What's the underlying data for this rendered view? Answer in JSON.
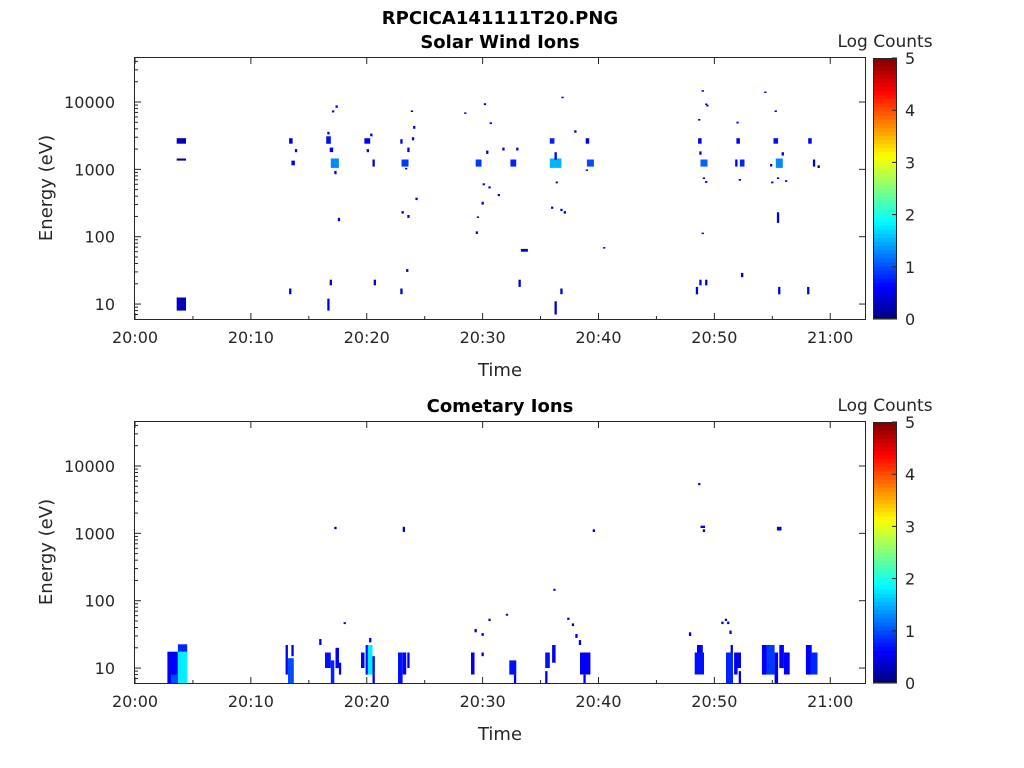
{
  "figure_title": "RPCICA141111T20.PNG",
  "chart_data": [
    {
      "type": "heatmap",
      "title": "Solar Wind Ions",
      "xlabel": "Time",
      "ylabel": "Energy (eV)",
      "x_ticks": [
        "20:00",
        "20:10",
        "20:20",
        "20:30",
        "20:40",
        "20:50",
        "21:00"
      ],
      "y_ticks": [
        "10",
        "100",
        "1000",
        "10000"
      ],
      "y_scale": "log",
      "ylim": [
        6,
        45000
      ],
      "xlim_minutes": [
        0,
        63
      ],
      "colorbar": {
        "label": "Log Counts",
        "ticks": [
          "0",
          "1",
          "2",
          "3",
          "4",
          "5"
        ],
        "range": [
          0,
          5
        ],
        "colormap": "jet"
      },
      "cells": [
        [
          3.6,
          4.4,
          2400,
          2900,
          0.3
        ],
        [
          3.6,
          4.4,
          1350,
          1450,
          0.2
        ],
        [
          3.6,
          4.4,
          8,
          12.5,
          0.3
        ],
        [
          13.3,
          13.6,
          2400,
          2900,
          0.5
        ],
        [
          13.5,
          13.8,
          1150,
          1350,
          0.6
        ],
        [
          13.8,
          14.0,
          1800,
          2000,
          0.4
        ],
        [
          13.3,
          13.5,
          14,
          17,
          0.4
        ],
        [
          16.5,
          16.9,
          2400,
          3100,
          0.7
        ],
        [
          16.6,
          16.8,
          3300,
          3600,
          0.5
        ],
        [
          16.8,
          17.1,
          1800,
          2100,
          0.6
        ],
        [
          16.9,
          17.6,
          1050,
          1450,
          1.3
        ],
        [
          17.2,
          17.4,
          850,
          950,
          0.5
        ],
        [
          17.3,
          17.5,
          8200,
          8900,
          0.4
        ],
        [
          17.0,
          17.2,
          7000,
          7500,
          0.4
        ],
        [
          17.5,
          17.7,
          170,
          190,
          0.4
        ],
        [
          16.6,
          16.8,
          8,
          12,
          0.4
        ],
        [
          16.8,
          17.0,
          19,
          23,
          0.4
        ],
        [
          19.8,
          20.3,
          2400,
          2900,
          0.6
        ],
        [
          20.0,
          20.2,
          1800,
          2000,
          0.4
        ],
        [
          20.3,
          20.5,
          3100,
          3400,
          0.4
        ],
        [
          20.5,
          20.7,
          1100,
          1400,
          0.4
        ],
        [
          20.6,
          20.8,
          19,
          23,
          0.4
        ],
        [
          22.9,
          23.1,
          2400,
          2800,
          0.5
        ],
        [
          23.0,
          23.6,
          1100,
          1400,
          0.9
        ],
        [
          23.3,
          23.5,
          1000,
          1050,
          0.5
        ],
        [
          23.5,
          23.7,
          1800,
          2100,
          0.4
        ],
        [
          23.9,
          24.1,
          2700,
          3000,
          0.4
        ],
        [
          23.8,
          24.0,
          7100,
          7500,
          0.4
        ],
        [
          24.0,
          24.2,
          4000,
          4400,
          0.4
        ],
        [
          23.0,
          23.2,
          220,
          240,
          0.4
        ],
        [
          23.5,
          23.7,
          190,
          210,
          0.4
        ],
        [
          24.2,
          24.4,
          350,
          380,
          0.4
        ],
        [
          23.4,
          23.6,
          30,
          33,
          0.4
        ],
        [
          22.9,
          23.1,
          14,
          17,
          0.4
        ],
        [
          28.4,
          28.6,
          6700,
          7000,
          0.4
        ],
        [
          29.4,
          29.9,
          1100,
          1400,
          0.9
        ],
        [
          29.5,
          29.7,
          190,
          200,
          0.4
        ],
        [
          29.4,
          29.6,
          110,
          120,
          0.4
        ],
        [
          29.9,
          30.1,
          300,
          330,
          0.4
        ],
        [
          30.0,
          30.2,
          580,
          620,
          0.4
        ],
        [
          30.3,
          30.5,
          1700,
          1900,
          0.4
        ],
        [
          30.5,
          30.7,
          520,
          560,
          0.4
        ],
        [
          30.1,
          30.3,
          9000,
          9600,
          0.4
        ],
        [
          30.6,
          30.8,
          4700,
          5000,
          0.4
        ],
        [
          31.3,
          31.5,
          400,
          430,
          0.4
        ],
        [
          31.7,
          31.9,
          1900,
          2100,
          0.4
        ],
        [
          32.4,
          32.9,
          1100,
          1400,
          0.8
        ],
        [
          32.9,
          33.1,
          1900,
          2100,
          0.4
        ],
        [
          33.3,
          33.9,
          60,
          66,
          0.4
        ],
        [
          33.1,
          33.3,
          18,
          23,
          0.4
        ],
        [
          35.8,
          36.2,
          2400,
          2900,
          0.8
        ],
        [
          35.8,
          36.8,
          1050,
          1450,
          1.5
        ],
        [
          36.2,
          36.4,
          1400,
          1800,
          0.6
        ],
        [
          35.9,
          36.1,
          260,
          280,
          0.4
        ],
        [
          36.3,
          36.5,
          620,
          660,
          0.4
        ],
        [
          36.7,
          36.9,
          240,
          260,
          0.4
        ],
        [
          37.0,
          37.2,
          220,
          240,
          0.4
        ],
        [
          36.8,
          37.0,
          11500,
          12000,
          0.4
        ],
        [
          37.9,
          38.1,
          3500,
          3800,
          0.4
        ],
        [
          36.2,
          36.4,
          7,
          11,
          0.4
        ],
        [
          36.7,
          36.9,
          14,
          17,
          0.4
        ],
        [
          38.9,
          39.2,
          2400,
          2900,
          0.6
        ],
        [
          39.0,
          39.6,
          1100,
          1400,
          1.0
        ],
        [
          38.9,
          39.1,
          950,
          1000,
          0.4
        ],
        [
          40.4,
          40.6,
          68,
          70,
          0.4
        ],
        [
          48.6,
          48.8,
          5300,
          5600,
          0.4
        ],
        [
          48.6,
          48.9,
          2400,
          2900,
          0.6
        ],
        [
          48.7,
          48.9,
          1650,
          1850,
          0.4
        ],
        [
          48.8,
          49.4,
          1100,
          1400,
          1.1
        ],
        [
          48.9,
          49.1,
          14200,
          15000,
          0.4
        ],
        [
          49.3,
          49.5,
          8600,
          9100,
          0.4
        ],
        [
          49.2,
          49.4,
          9100,
          9500,
          0.4
        ],
        [
          49.0,
          49.2,
          720,
          760,
          0.4
        ],
        [
          49.2,
          49.4,
          630,
          670,
          0.4
        ],
        [
          48.9,
          49.1,
          110,
          115,
          0.4
        ],
        [
          48.4,
          48.6,
          14,
          18,
          0.4
        ],
        [
          48.7,
          48.9,
          19,
          23,
          0.4
        ],
        [
          49.2,
          49.4,
          19,
          23,
          0.4
        ],
        [
          51.9,
          52.2,
          2400,
          2900,
          0.6
        ],
        [
          51.9,
          52.1,
          4800,
          5100,
          0.4
        ],
        [
          51.8,
          52.0,
          1100,
          1400,
          0.5
        ],
        [
          52.2,
          52.6,
          1100,
          1400,
          0.8
        ],
        [
          52.1,
          52.3,
          680,
          720,
          0.4
        ],
        [
          52.3,
          52.5,
          25,
          29,
          0.4
        ],
        [
          54.3,
          54.5,
          13600,
          14300,
          0.4
        ],
        [
          55.1,
          55.5,
          2400,
          2900,
          0.7
        ],
        [
          55.2,
          55.4,
          7100,
          7500,
          0.4
        ],
        [
          55.3,
          55.9,
          1050,
          1450,
          1.3
        ],
        [
          54.8,
          55.0,
          1100,
          1200,
          0.5
        ],
        [
          54.9,
          55.1,
          620,
          660,
          0.4
        ],
        [
          55.4,
          55.6,
          720,
          760,
          0.4
        ],
        [
          55.8,
          56.0,
          1600,
          1800,
          0.4
        ],
        [
          56.1,
          56.3,
          650,
          690,
          0.4
        ],
        [
          55.4,
          55.6,
          160,
          230,
          0.4
        ],
        [
          55.5,
          55.7,
          14,
          18,
          0.4
        ],
        [
          58.1,
          58.4,
          2400,
          2900,
          0.6
        ],
        [
          58.5,
          58.7,
          1100,
          1400,
          0.4
        ],
        [
          58.9,
          59.1,
          1050,
          1150,
          0.4
        ],
        [
          58.0,
          58.2,
          14,
          18,
          0.4
        ]
      ]
    },
    {
      "type": "heatmap",
      "title": "Cometary Ions",
      "xlabel": "Time",
      "ylabel": "Energy (eV)",
      "x_ticks": [
        "20:00",
        "20:10",
        "20:20",
        "20:30",
        "20:40",
        "20:50",
        "21:00"
      ],
      "y_ticks": [
        "10",
        "100",
        "1000",
        "10000"
      ],
      "y_scale": "log",
      "ylim": [
        6,
        45000
      ],
      "xlim_minutes": [
        0,
        63
      ],
      "colorbar": {
        "label": "Log Counts",
        "ticks": [
          "0",
          "1",
          "2",
          "3",
          "4",
          "5"
        ],
        "range": [
          0,
          5
        ],
        "colormap": "jet"
      },
      "cells": [
        [
          2.8,
          3.7,
          6,
          17.5,
          0.6
        ],
        [
          3.7,
          4.5,
          6,
          17.5,
          1.8
        ],
        [
          3.7,
          4.5,
          17.5,
          22.5,
          0.8
        ],
        [
          3.1,
          3.7,
          6,
          8,
          1.0
        ],
        [
          13.0,
          13.2,
          8,
          22,
          0.5
        ],
        [
          13.2,
          13.7,
          6,
          14,
          1.0
        ],
        [
          13.5,
          13.7,
          15,
          22,
          0.5
        ],
        [
          15.9,
          16.1,
          22,
          27,
          0.5
        ],
        [
          16.4,
          16.9,
          10,
          17,
          0.7
        ],
        [
          16.9,
          17.2,
          6,
          13,
          0.8
        ],
        [
          17.3,
          17.6,
          10,
          20,
          0.6
        ],
        [
          17.6,
          17.8,
          8,
          12,
          0.5
        ],
        [
          17.2,
          17.4,
          1150,
          1250,
          0.4
        ],
        [
          18.0,
          18.2,
          45,
          48,
          0.4
        ],
        [
          19.5,
          19.8,
          10,
          17,
          0.6
        ],
        [
          19.9,
          20.1,
          8,
          22,
          0.7
        ],
        [
          20.1,
          20.5,
          8,
          22,
          1.8
        ],
        [
          20.2,
          20.4,
          24,
          28,
          0.5
        ],
        [
          20.5,
          20.7,
          6,
          15,
          0.5
        ],
        [
          22.7,
          23.1,
          6,
          17,
          0.7
        ],
        [
          23.1,
          23.4,
          8,
          17,
          0.6
        ],
        [
          23.5,
          23.7,
          10,
          17,
          0.5
        ],
        [
          23.1,
          23.3,
          1050,
          1250,
          0.4
        ],
        [
          29.0,
          29.3,
          8,
          17,
          0.6
        ],
        [
          29.3,
          29.5,
          34,
          38,
          0.4
        ],
        [
          29.9,
          30.1,
          15,
          17,
          0.4
        ],
        [
          29.9,
          30.1,
          30,
          33,
          0.4
        ],
        [
          30.5,
          30.7,
          50,
          54,
          0.4
        ],
        [
          32.0,
          32.2,
          60,
          64,
          0.4
        ],
        [
          32.3,
          32.9,
          8,
          13,
          0.7
        ],
        [
          32.7,
          32.9,
          6,
          8,
          0.5
        ],
        [
          35.4,
          35.8,
          10,
          17,
          0.7
        ],
        [
          35.4,
          35.6,
          6,
          9,
          0.5
        ],
        [
          36.0,
          36.3,
          12,
          22,
          0.6
        ],
        [
          36.1,
          36.3,
          140,
          150,
          0.4
        ],
        [
          37.3,
          37.5,
          52,
          56,
          0.4
        ],
        [
          37.7,
          37.9,
          42,
          46,
          0.4
        ],
        [
          38.0,
          38.2,
          28,
          32,
          0.4
        ],
        [
          38.3,
          38.5,
          22,
          26,
          0.4
        ],
        [
          38.4,
          39.3,
          8,
          17,
          0.6
        ],
        [
          38.7,
          38.9,
          6,
          8,
          0.5
        ],
        [
          39.5,
          39.7,
          1050,
          1150,
          0.4
        ],
        [
          47.8,
          48.0,
          30,
          34,
          0.4
        ],
        [
          48.3,
          49.1,
          8,
          17,
          0.7
        ],
        [
          48.5,
          49.0,
          17,
          22,
          0.6
        ],
        [
          48.6,
          48.8,
          5200,
          5600,
          0.4
        ],
        [
          48.8,
          49.2,
          1200,
          1300,
          0.4
        ],
        [
          49.0,
          49.2,
          1050,
          1150,
          0.4
        ],
        [
          50.6,
          50.8,
          45,
          49,
          0.4
        ],
        [
          50.9,
          51.1,
          50,
          54,
          0.4
        ],
        [
          51.1,
          51.3,
          45,
          49,
          0.4
        ],
        [
          51.3,
          51.5,
          32,
          36,
          0.4
        ],
        [
          51.0,
          51.6,
          6,
          17,
          0.8
        ],
        [
          51.4,
          51.6,
          17,
          22,
          0.5
        ],
        [
          51.7,
          52.0,
          8,
          17,
          0.5
        ],
        [
          52.0,
          52.3,
          10,
          17,
          0.6
        ],
        [
          52.1,
          52.3,
          6,
          9,
          0.5
        ],
        [
          54.1,
          54.5,
          8,
          22,
          0.6
        ],
        [
          54.5,
          55.2,
          8,
          22,
          0.9
        ],
        [
          55.2,
          55.5,
          6,
          17,
          0.5
        ],
        [
          55.6,
          56.0,
          10,
          22,
          0.6
        ],
        [
          55.4,
          55.8,
          1100,
          1250,
          0.4
        ],
        [
          56.0,
          56.5,
          8,
          17,
          0.6
        ],
        [
          57.9,
          58.4,
          8,
          22,
          0.6
        ],
        [
          58.3,
          58.9,
          8,
          17,
          0.8
        ]
      ]
    }
  ]
}
